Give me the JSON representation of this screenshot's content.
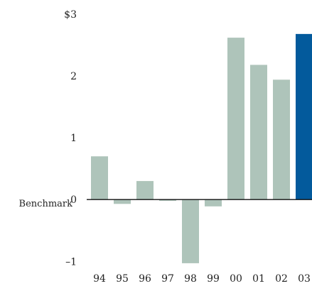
{
  "chart_data": {
    "type": "bar",
    "title": "",
    "xlabel": "",
    "ylabel": "",
    "categories": [
      "94",
      "95",
      "96",
      "97",
      "98",
      "99",
      "00",
      "01",
      "02",
      "03"
    ],
    "values": [
      0.7,
      -0.07,
      0.3,
      -0.02,
      -1.03,
      -0.11,
      2.62,
      2.18,
      1.94,
      2.68
    ],
    "ylim": [
      -1.1,
      3.0
    ],
    "yticks": [
      {
        "value": 3,
        "label": "$3"
      },
      {
        "value": 2,
        "label": "2"
      },
      {
        "value": 1,
        "label": "1"
      },
      {
        "value": 0,
        "label": "0"
      },
      {
        "value": -1,
        "label": "–1"
      }
    ],
    "baseline_label": "Benchmark",
    "grid": false,
    "colors": {
      "bar_default": "#aec4ba",
      "bar_highlight": "#035a9c",
      "axis": "#111111"
    },
    "highlight_category": "03"
  }
}
